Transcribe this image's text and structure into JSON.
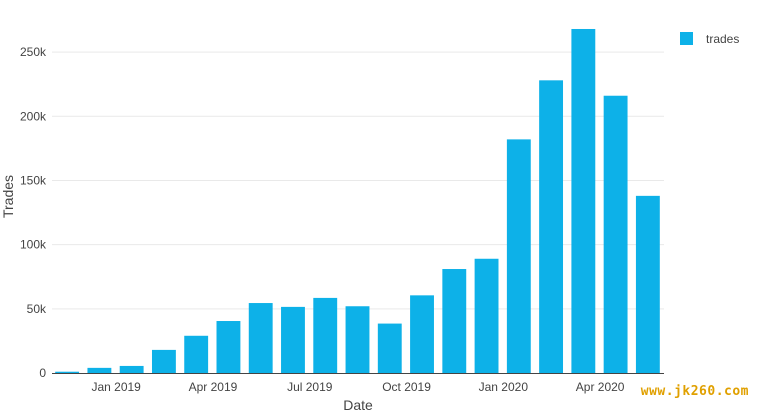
{
  "chart_data": {
    "type": "bar",
    "x": [
      "2018-11",
      "2018-12",
      "2019-01",
      "2019-02",
      "2019-03",
      "2019-04",
      "2019-05",
      "2019-06",
      "2019-07",
      "2019-08",
      "2019-09",
      "2019-10",
      "2019-11",
      "2019-12",
      "2020-01",
      "2020-02",
      "2020-03",
      "2020-04",
      "2020-05"
    ],
    "series": [
      {
        "name": "trades",
        "color": "#0db1e8",
        "values": [
          1000,
          4000,
          5500,
          18000,
          29000,
          40500,
          54500,
          51500,
          58500,
          52000,
          38500,
          60500,
          81000,
          89000,
          182000,
          228000,
          268000,
          216000,
          138000
        ]
      }
    ],
    "xlabel": "Date",
    "ylabel": "Trades",
    "ylim": [
      0,
      275000
    ],
    "yticks": [
      0,
      50000,
      100000,
      150000,
      200000,
      250000
    ],
    "ytick_labels": [
      "0",
      "50k",
      "100k",
      "150k",
      "200k",
      "250k"
    ],
    "xticks": [
      "2019-01",
      "2019-04",
      "2019-07",
      "2019-10",
      "2020-01",
      "2020-04"
    ],
    "xtick_labels": [
      "Jan 2019",
      "Apr 2019",
      "Jul 2019",
      "Oct 2019",
      "Jan 2020",
      "Apr 2020"
    ],
    "grid": true,
    "legend_position": "top-right"
  },
  "watermark": "www.jk260.com"
}
